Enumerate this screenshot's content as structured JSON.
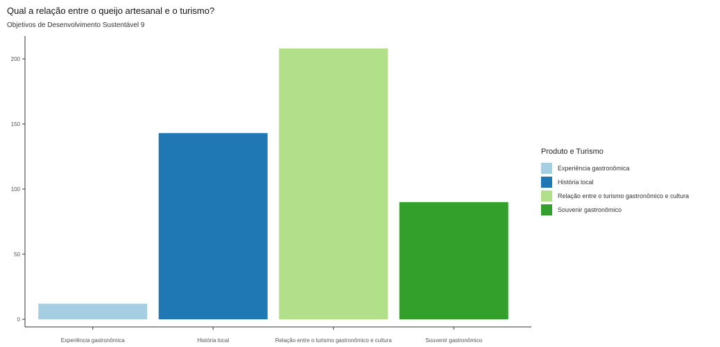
{
  "chart_data": {
    "type": "bar",
    "title": "Qual a relação entre o queijo artesanal e o turismo?",
    "subtitle": "Objetivos de Desenvolvimento Sustentável 9",
    "categories": [
      "Experiência gastronômica",
      "História local",
      "Relação entre o turismo gastronômico e cultura",
      "Souvenir gastronômico"
    ],
    "values": [
      12,
      143,
      208,
      90
    ],
    "colors": [
      "#a6cee3",
      "#1f78b4",
      "#b2df8a",
      "#33a02c"
    ],
    "xlabel": "",
    "ylabel": "",
    "ylim": [
      0,
      215
    ],
    "yticks": [
      0,
      50,
      100,
      150,
      200
    ],
    "grid": false,
    "legend": {
      "title": "Produto e Turismo",
      "position": "right"
    }
  }
}
